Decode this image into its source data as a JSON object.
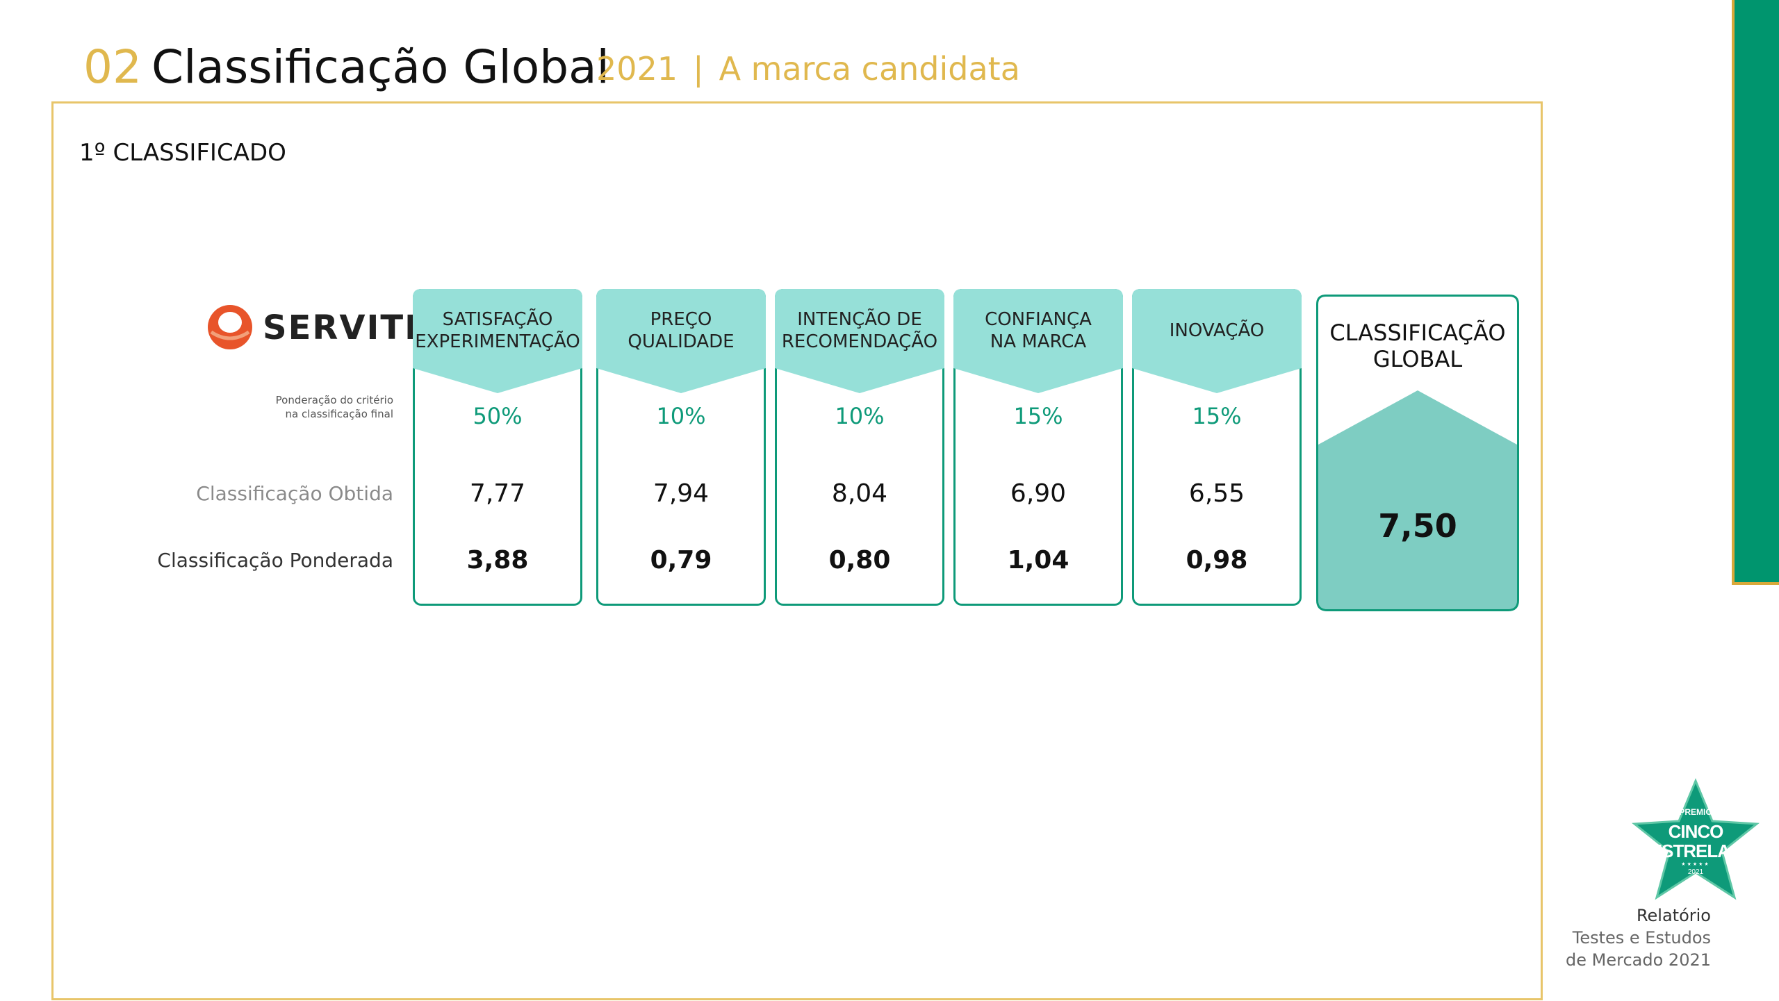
{
  "header": {
    "section_number": "02",
    "section_title": "Classificação Global",
    "year": "2021",
    "separator": "|",
    "subtitle": "A marca candidata"
  },
  "rank_label": "1º CLASSIFICADO",
  "brand": {
    "name": "SERVITIS",
    "logo_icon": "servitis-logo-icon",
    "logo_color": "#e8542a"
  },
  "row_labels": {
    "weight_line1": "Ponderação do critério",
    "weight_line2": "na classificação final",
    "obtained": "Classificação Obtida",
    "weighted": "Classificação Ponderada"
  },
  "criteria": [
    {
      "title_line1": "SATISFAÇÃO",
      "title_line2": "EXPERIMENTAÇÃO",
      "weight": "50%",
      "obtained": "7,77",
      "weighted": "3,88"
    },
    {
      "title_line1": "PREÇO",
      "title_line2": "QUALIDADE",
      "weight": "10%",
      "obtained": "7,94",
      "weighted": "0,79"
    },
    {
      "title_line1": "INTENÇÃO DE",
      "title_line2": "RECOMENDAÇÃO",
      "weight": "10%",
      "obtained": "8,04",
      "weighted": "0,80"
    },
    {
      "title_line1": "CONFIANÇA",
      "title_line2": "NA MARCA",
      "weight": "15%",
      "obtained": "6,90",
      "weighted": "1,04"
    },
    {
      "title_line1": "INOVAÇÃO",
      "title_line2": "",
      "weight": "15%",
      "obtained": "6,55",
      "weighted": "0,98"
    }
  ],
  "global": {
    "title_line1": "CLASSIFICAÇÃO",
    "title_line2": "GLOBAL",
    "value": "7,50"
  },
  "award": {
    "top": "PREMIO",
    "line1": "CINCO",
    "line2": "ESTRELAS",
    "stars": "★★★★★",
    "year": "2021"
  },
  "report": {
    "line1": "Relatório",
    "line2": "Testes e Estudos",
    "line3": "de Mercado 2021"
  },
  "colors": {
    "gold": "#e0b84e",
    "teal": "#0e9a79",
    "banner": "#96e0d8",
    "global_fill": "#7ecdc2",
    "side_bar": "#00956e"
  }
}
